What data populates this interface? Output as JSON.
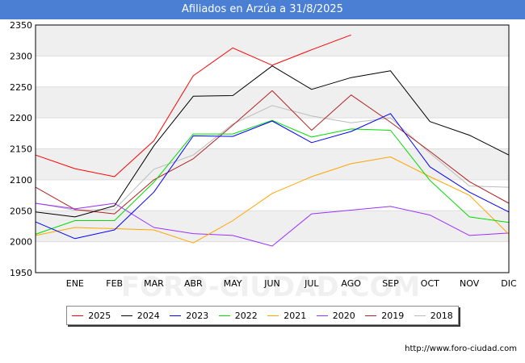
{
  "title": "Afiliados en Arzúa a 31/8/2025",
  "url": "http://www.foro-ciudad.com",
  "watermark": "FORO-CIUDAD.COM",
  "chart_data": {
    "type": "line",
    "categories": [
      "",
      "ENE",
      "FEB",
      "MAR",
      "ABR",
      "MAY",
      "JUN",
      "JUL",
      "AGO",
      "SEP",
      "OCT",
      "NOV",
      "DIC"
    ],
    "ylim": [
      1950,
      2350
    ],
    "yticks": [
      1950,
      2000,
      2050,
      2100,
      2150,
      2200,
      2250,
      2300,
      2350
    ],
    "grid": "horizontal-bands",
    "legend_position": "bottom",
    "series": [
      {
        "name": "2025",
        "color": "#ff0000",
        "values": [
          2140,
          2118,
          2105,
          2163,
          2268,
          2313,
          2285,
          2310,
          2334,
          null,
          null,
          null,
          null
        ]
      },
      {
        "name": "2024",
        "color": "#000000",
        "values": [
          2048,
          2040,
          2058,
          2155,
          2235,
          2236,
          2284,
          2246,
          2265,
          2276,
          2194,
          2172,
          2140
        ]
      },
      {
        "name": "2023",
        "color": "#0000ff",
        "values": [
          2032,
          2005,
          2019,
          2080,
          2171,
          2170,
          2195,
          2160,
          2178,
          2207,
          2121,
          2080,
          2048
        ]
      },
      {
        "name": "2022",
        "color": "#00dd00",
        "values": [
          2012,
          2034,
          2034,
          2096,
          2174,
          2174,
          2196,
          2169,
          2182,
          2180,
          2099,
          2040,
          2031
        ]
      },
      {
        "name": "2021",
        "color": "#ffa500",
        "values": [
          2010,
          2023,
          2021,
          2019,
          1998,
          2034,
          2078,
          2105,
          2126,
          2137,
          2105,
          2075,
          2012
        ]
      },
      {
        "name": "2020",
        "color": "#9b30ff",
        "values": [
          2062,
          2053,
          2062,
          2023,
          2013,
          2010,
          1993,
          2045,
          2051,
          2057,
          2043,
          2010,
          2014
        ]
      },
      {
        "name": "2019",
        "color": "#b22222",
        "values": [
          2088,
          2052,
          2045,
          2100,
          2134,
          2188,
          2244,
          2180,
          2237,
          2193,
          2146,
          2097,
          2062
        ]
      },
      {
        "name": "2018",
        "color": "#bbbbbb",
        "values": [
          2062,
          2051,
          2052,
          2117,
          2140,
          2190,
          2220,
          2203,
          2192,
          2200,
          2143,
          2090,
          2088
        ]
      }
    ]
  }
}
